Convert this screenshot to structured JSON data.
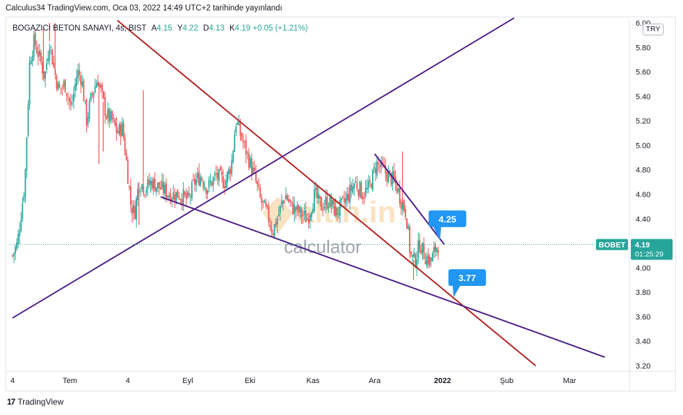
{
  "header": {
    "caption": "Calculus34 TradingView.com, Oca 03, 2022 14:49 UTC+2 tarihinde yayınlandı"
  },
  "legend": {
    "symbol": "BOGAZICI BETON SANAYI, 4s, BIST",
    "open_key": "A",
    "open": "4.15",
    "high_key": "Y",
    "high": "4.22",
    "low_key": "D",
    "low": "4.13",
    "close_key": "K",
    "close": "4.19",
    "change": "+0.05 (+1.21%)"
  },
  "currency": "TRY",
  "price_tag": {
    "ticker": "BOBET",
    "price": "4.19",
    "countdown": "01:25:29"
  },
  "watermark": {
    "brand": "altin.in",
    "sub": "calculator"
  },
  "footer": {
    "logo": "17",
    "brand": "TradingView"
  },
  "colors": {
    "up": "#26a69a",
    "down": "#ef5350",
    "trend_red": "#b22222",
    "trend_purple": "#4b1e87",
    "callout": "#2196f3",
    "price_tag": "#26a69a"
  },
  "chart_data": {
    "type": "candlestick",
    "y_ticks": [
      "6.00",
      "5.80",
      "5.60",
      "5.40",
      "5.20",
      "5.00",
      "4.80",
      "4.60",
      "4.40",
      "4.20",
      "4.00",
      "3.80",
      "3.60",
      "3.40",
      "3.20"
    ],
    "ylim": [
      3.2,
      6.0
    ],
    "x_ticks": [
      "4",
      "Tem",
      "4",
      "Eyl",
      "Eki",
      "Kas",
      "Ara",
      "2022",
      "Şub",
      "Mar"
    ],
    "x_tick_pos": [
      0.0,
      0.093,
      0.187,
      0.284,
      0.385,
      0.487,
      0.587,
      0.697,
      0.801,
      0.903
    ],
    "last_price": 4.19,
    "price_path": [
      [
        0.0,
        4.1
      ],
      [
        0.008,
        4.2
      ],
      [
        0.02,
        4.7
      ],
      [
        0.028,
        5.7
      ],
      [
        0.035,
        5.85
      ],
      [
        0.045,
        5.7
      ],
      [
        0.052,
        5.55
      ],
      [
        0.06,
        5.85
      ],
      [
        0.068,
        5.6
      ],
      [
        0.075,
        5.45
      ],
      [
        0.085,
        5.5
      ],
      [
        0.095,
        5.3
      ],
      [
        0.105,
        5.6
      ],
      [
        0.112,
        5.55
      ],
      [
        0.12,
        5.2
      ],
      [
        0.128,
        5.4
      ],
      [
        0.138,
        5.55
      ],
      [
        0.145,
        5.4
      ],
      [
        0.152,
        5.25
      ],
      [
        0.162,
        5.2
      ],
      [
        0.17,
        5.1
      ],
      [
        0.178,
        5.15
      ],
      [
        0.185,
        4.85
      ],
      [
        0.192,
        4.5
      ],
      [
        0.198,
        4.45
      ],
      [
        0.205,
        4.7
      ],
      [
        0.215,
        4.65
      ],
      [
        0.225,
        4.7
      ],
      [
        0.24,
        4.65
      ],
      [
        0.255,
        4.6
      ],
      [
        0.27,
        4.6
      ],
      [
        0.285,
        4.55
      ],
      [
        0.295,
        4.7
      ],
      [
        0.305,
        4.75
      ],
      [
        0.315,
        4.65
      ],
      [
        0.33,
        4.75
      ],
      [
        0.345,
        4.7
      ],
      [
        0.355,
        4.85
      ],
      [
        0.362,
        5.2
      ],
      [
        0.372,
        5.05
      ],
      [
        0.382,
        4.9
      ],
      [
        0.392,
        4.75
      ],
      [
        0.402,
        4.55
      ],
      [
        0.412,
        4.45
      ],
      [
        0.422,
        4.3
      ],
      [
        0.432,
        4.45
      ],
      [
        0.442,
        4.6
      ],
      [
        0.452,
        4.5
      ],
      [
        0.465,
        4.45
      ],
      [
        0.478,
        4.4
      ],
      [
        0.49,
        4.6
      ],
      [
        0.5,
        4.5
      ],
      [
        0.512,
        4.55
      ],
      [
        0.525,
        4.45
      ],
      [
        0.54,
        4.55
      ],
      [
        0.555,
        4.7
      ],
      [
        0.568,
        4.6
      ],
      [
        0.578,
        4.65
      ],
      [
        0.59,
        4.85
      ],
      [
        0.6,
        4.8
      ],
      [
        0.61,
        4.75
      ],
      [
        0.62,
        4.7
      ],
      [
        0.63,
        4.55
      ],
      [
        0.638,
        4.45
      ],
      [
        0.645,
        4.1
      ],
      [
        0.652,
        4.05
      ],
      [
        0.66,
        4.2
      ],
      [
        0.668,
        4.1
      ],
      [
        0.678,
        4.05
      ],
      [
        0.685,
        4.15
      ],
      [
        0.69,
        4.19
      ]
    ],
    "spikes": [
      [
        0.05,
        5.95
      ],
      [
        0.06,
        6.0
      ],
      [
        0.069,
        6.0
      ],
      [
        0.14,
        4.85
      ],
      [
        0.147,
        4.95
      ],
      [
        0.205,
        4.35
      ],
      [
        0.212,
        5.45
      ],
      [
        0.65,
        3.9
      ],
      [
        0.632,
        4.95
      ]
    ],
    "trendlines": [
      {
        "color": "trend_red",
        "from": [
          0.17,
          6.02
        ],
        "to": [
          0.848,
          3.2
        ]
      },
      {
        "color": "trend_purple",
        "from": [
          0.0,
          3.59
        ],
        "to": [
          0.813,
          6.04
        ]
      },
      {
        "color": "trend_purple",
        "from": [
          0.24,
          4.58
        ],
        "to": [
          0.96,
          3.27
        ]
      },
      {
        "color": "trend_purple",
        "from": [
          0.587,
          4.93
        ],
        "to": [
          0.7,
          4.19
        ]
      }
    ],
    "callouts": [
      {
        "label": "4.25",
        "x": 0.705,
        "y": 4.4,
        "pointer": [
          0.693,
          4.22
        ]
      },
      {
        "label": "3.77",
        "x": 0.737,
        "y": 3.92,
        "pointer": [
          0.715,
          3.76
        ]
      }
    ]
  }
}
